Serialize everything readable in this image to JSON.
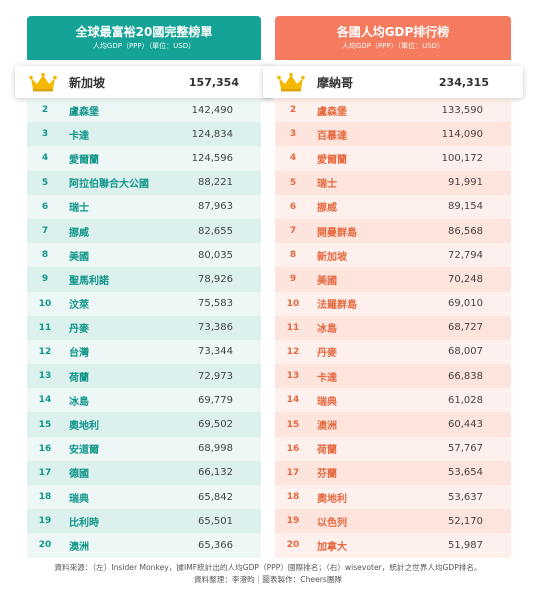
{
  "chart_data": [
    {
      "type": "table",
      "title": "全球最富裕20國完整榜單",
      "subtitle": "人均GDP（PPP）（單位：USD）",
      "columns": [
        "rank",
        "country",
        "value"
      ],
      "rows": [
        {
          "rank": "1",
          "country": "新加坡",
          "value": "157,354"
        },
        {
          "rank": "2",
          "country": "盧森堡",
          "value": "142,490"
        },
        {
          "rank": "3",
          "country": "卡達",
          "value": "124,834"
        },
        {
          "rank": "4",
          "country": "愛爾蘭",
          "value": "124,596"
        },
        {
          "rank": "5",
          "country": "阿拉伯聯合大公國",
          "value": "88,221"
        },
        {
          "rank": "6",
          "country": "瑞士",
          "value": "87,963"
        },
        {
          "rank": "7",
          "country": "挪威",
          "value": "82,655"
        },
        {
          "rank": "8",
          "country": "美國",
          "value": "80,035"
        },
        {
          "rank": "9",
          "country": "聖馬利諾",
          "value": "78,926"
        },
        {
          "rank": "10",
          "country": "汶萊",
          "value": "75,583"
        },
        {
          "rank": "11",
          "country": "丹麥",
          "value": "73,386"
        },
        {
          "rank": "12",
          "country": "台灣",
          "value": "73,344"
        },
        {
          "rank": "13",
          "country": "荷蘭",
          "value": "72,973"
        },
        {
          "rank": "14",
          "country": "冰島",
          "value": "69,779"
        },
        {
          "rank": "15",
          "country": "奧地利",
          "value": "69,502"
        },
        {
          "rank": "16",
          "country": "安道爾",
          "value": "68,998"
        },
        {
          "rank": "17",
          "country": "德國",
          "value": "66,132"
        },
        {
          "rank": "18",
          "country": "瑞典",
          "value": "65,842"
        },
        {
          "rank": "19",
          "country": "比利時",
          "value": "65,501"
        },
        {
          "rank": "20",
          "country": "澳洲",
          "value": "65,366"
        }
      ]
    },
    {
      "type": "table",
      "title": "各國人均GDP排行榜",
      "subtitle": "人均GDP（PPP）（單位：USD）",
      "columns": [
        "rank",
        "country",
        "value"
      ],
      "rows": [
        {
          "rank": "1",
          "country": "摩納哥",
          "value": "234,315"
        },
        {
          "rank": "2",
          "country": "盧森堡",
          "value": "133,590"
        },
        {
          "rank": "3",
          "country": "百慕達",
          "value": "114,090"
        },
        {
          "rank": "4",
          "country": "愛爾蘭",
          "value": "100,172"
        },
        {
          "rank": "5",
          "country": "瑞士",
          "value": "91,991"
        },
        {
          "rank": "6",
          "country": "挪威",
          "value": "89,154"
        },
        {
          "rank": "7",
          "country": "開曼群島",
          "value": "86,568"
        },
        {
          "rank": "8",
          "country": "新加坡",
          "value": "72,794"
        },
        {
          "rank": "9",
          "country": "美國",
          "value": "70,248"
        },
        {
          "rank": "10",
          "country": "法羅群島",
          "value": "69,010"
        },
        {
          "rank": "11",
          "country": "冰島",
          "value": "68,727"
        },
        {
          "rank": "12",
          "country": "丹麥",
          "value": "68,007"
        },
        {
          "rank": "13",
          "country": "卡達",
          "value": "66,838"
        },
        {
          "rank": "14",
          "country": "瑞典",
          "value": "61,028"
        },
        {
          "rank": "15",
          "country": "澳洲",
          "value": "60,443"
        },
        {
          "rank": "16",
          "country": "荷蘭",
          "value": "57,767"
        },
        {
          "rank": "17",
          "country": "芬蘭",
          "value": "53,654"
        },
        {
          "rank": "18",
          "country": "奧地利",
          "value": "53,637"
        },
        {
          "rank": "19",
          "country": "以色列",
          "value": "52,170"
        },
        {
          "rank": "20",
          "country": "加拿大",
          "value": "51,987"
        }
      ]
    }
  ],
  "colors": {
    "left_accent": "#14a396",
    "right_accent": "#f47b5d",
    "crown": "#f5b800"
  },
  "icons": {
    "top_rank": "crown-icon"
  },
  "footer": {
    "line1": "資料來源：（左）Insider Monkey，據IMF統計出的人均GDP（PPP）國際排名；（右）wisevoter，統計之世界人均GDP排名。",
    "line2": "資料整理：李澄昀｜圖表製作：Cheers團隊"
  }
}
